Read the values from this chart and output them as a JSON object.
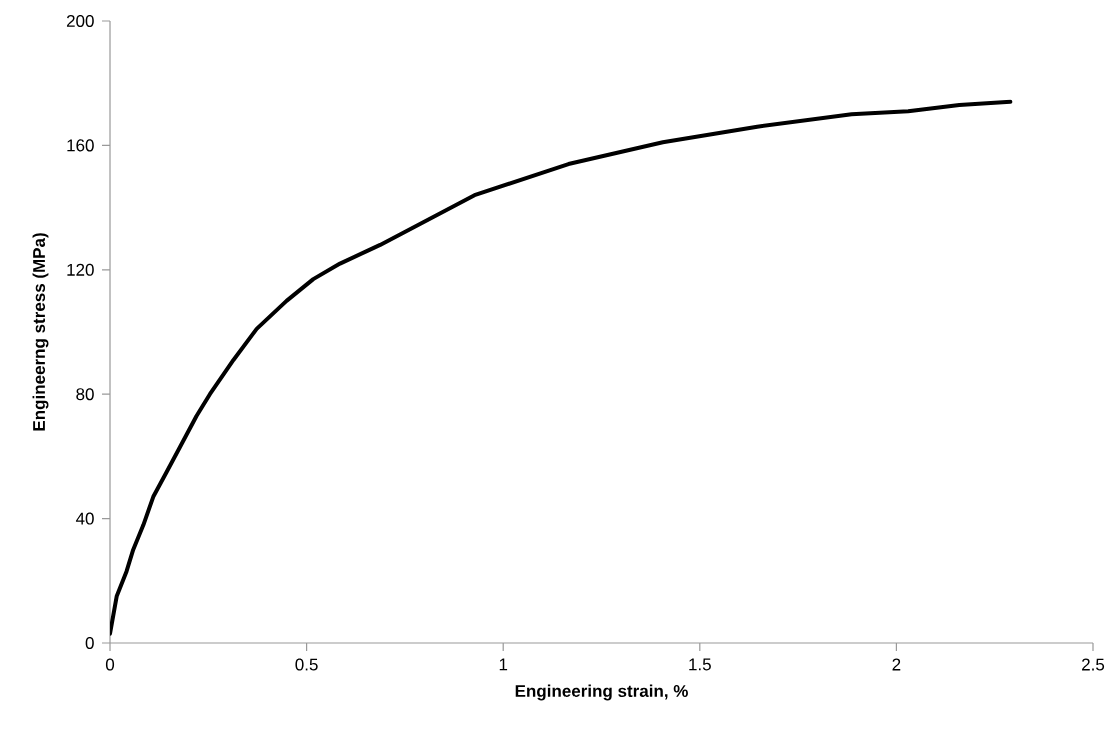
{
  "chart_data": {
    "type": "line",
    "xlabel": "Engineering strain, %",
    "ylabel": "Engineerng stress (MPa)",
    "x": [
      0,
      0.017,
      0.042,
      0.059,
      0.085,
      0.11,
      0.144,
      0.178,
      0.22,
      0.254,
      0.314,
      0.373,
      0.449,
      0.517,
      0.585,
      0.653,
      0.687,
      0.927,
      1.166,
      1.406,
      1.646,
      1.886,
      2.03,
      2.16,
      2.29
    ],
    "series": [
      {
        "color": "#000000",
        "values": [
          3,
          15,
          23,
          30,
          38,
          47,
          55,
          63,
          73,
          80,
          91,
          101,
          110,
          117,
          122,
          126,
          128,
          144,
          154,
          161,
          166,
          170,
          171,
          173,
          174
        ]
      }
    ],
    "xlim": [
      0,
      2.5
    ],
    "ylim": [
      0,
      200
    ],
    "xticks": [
      0,
      0.5,
      1,
      1.5,
      2,
      2.5
    ],
    "yticks": [
      0,
      40,
      80,
      120,
      160,
      200
    ],
    "grid": false,
    "marker": "none",
    "line_style": "solid"
  }
}
